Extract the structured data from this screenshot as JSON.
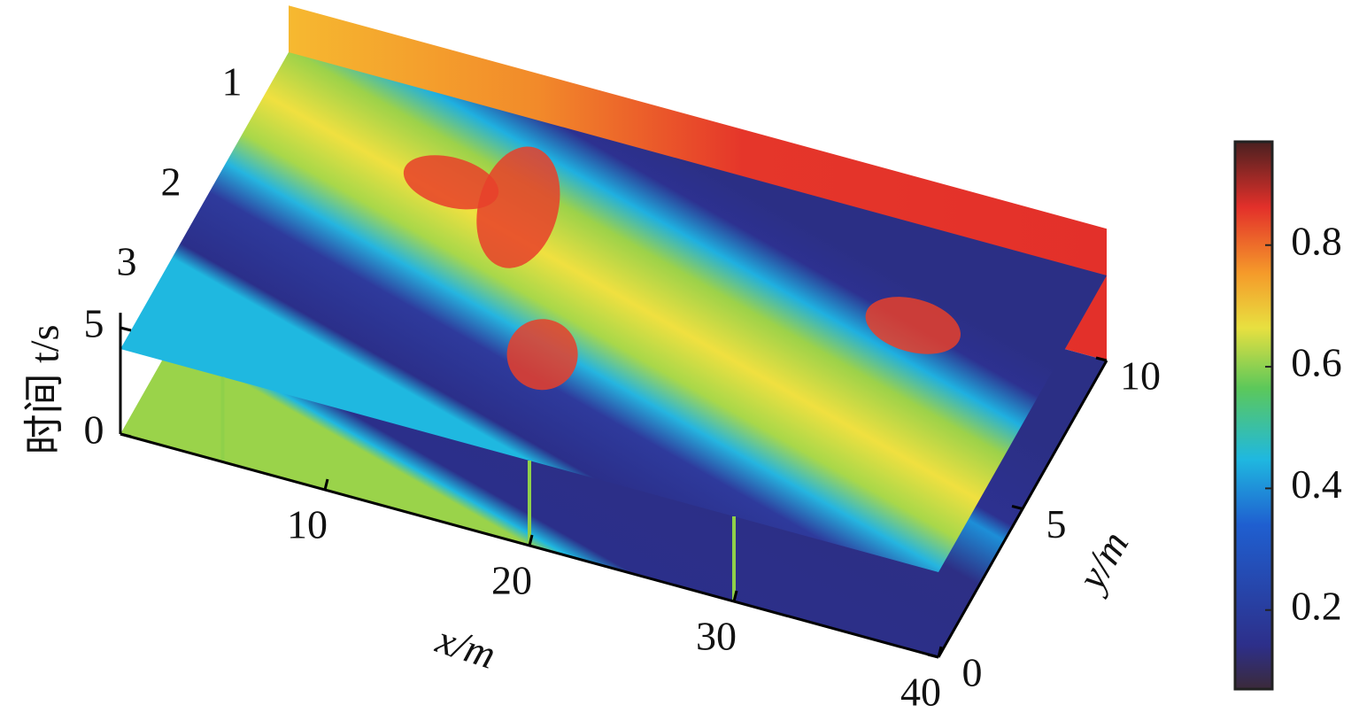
{
  "chart_data": {
    "type": "slice",
    "xlabel": "x/m",
    "ylabel": "y/m",
    "zlabel": "时间 t/s",
    "xlim": [
      0,
      40
    ],
    "xticks": [
      10,
      20,
      30,
      40
    ],
    "ylim": [
      0,
      10
    ],
    "yticks": [
      0,
      5,
      10
    ],
    "zlim": [
      0,
      6.2
    ],
    "zticks": [
      0,
      5
    ],
    "slice_labels": [
      "1",
      "2",
      "3"
    ],
    "colorbar": {
      "clim": [
        0.07,
        0.97
      ],
      "ticks": [
        0.2,
        0.4,
        0.6,
        0.8
      ]
    }
  }
}
